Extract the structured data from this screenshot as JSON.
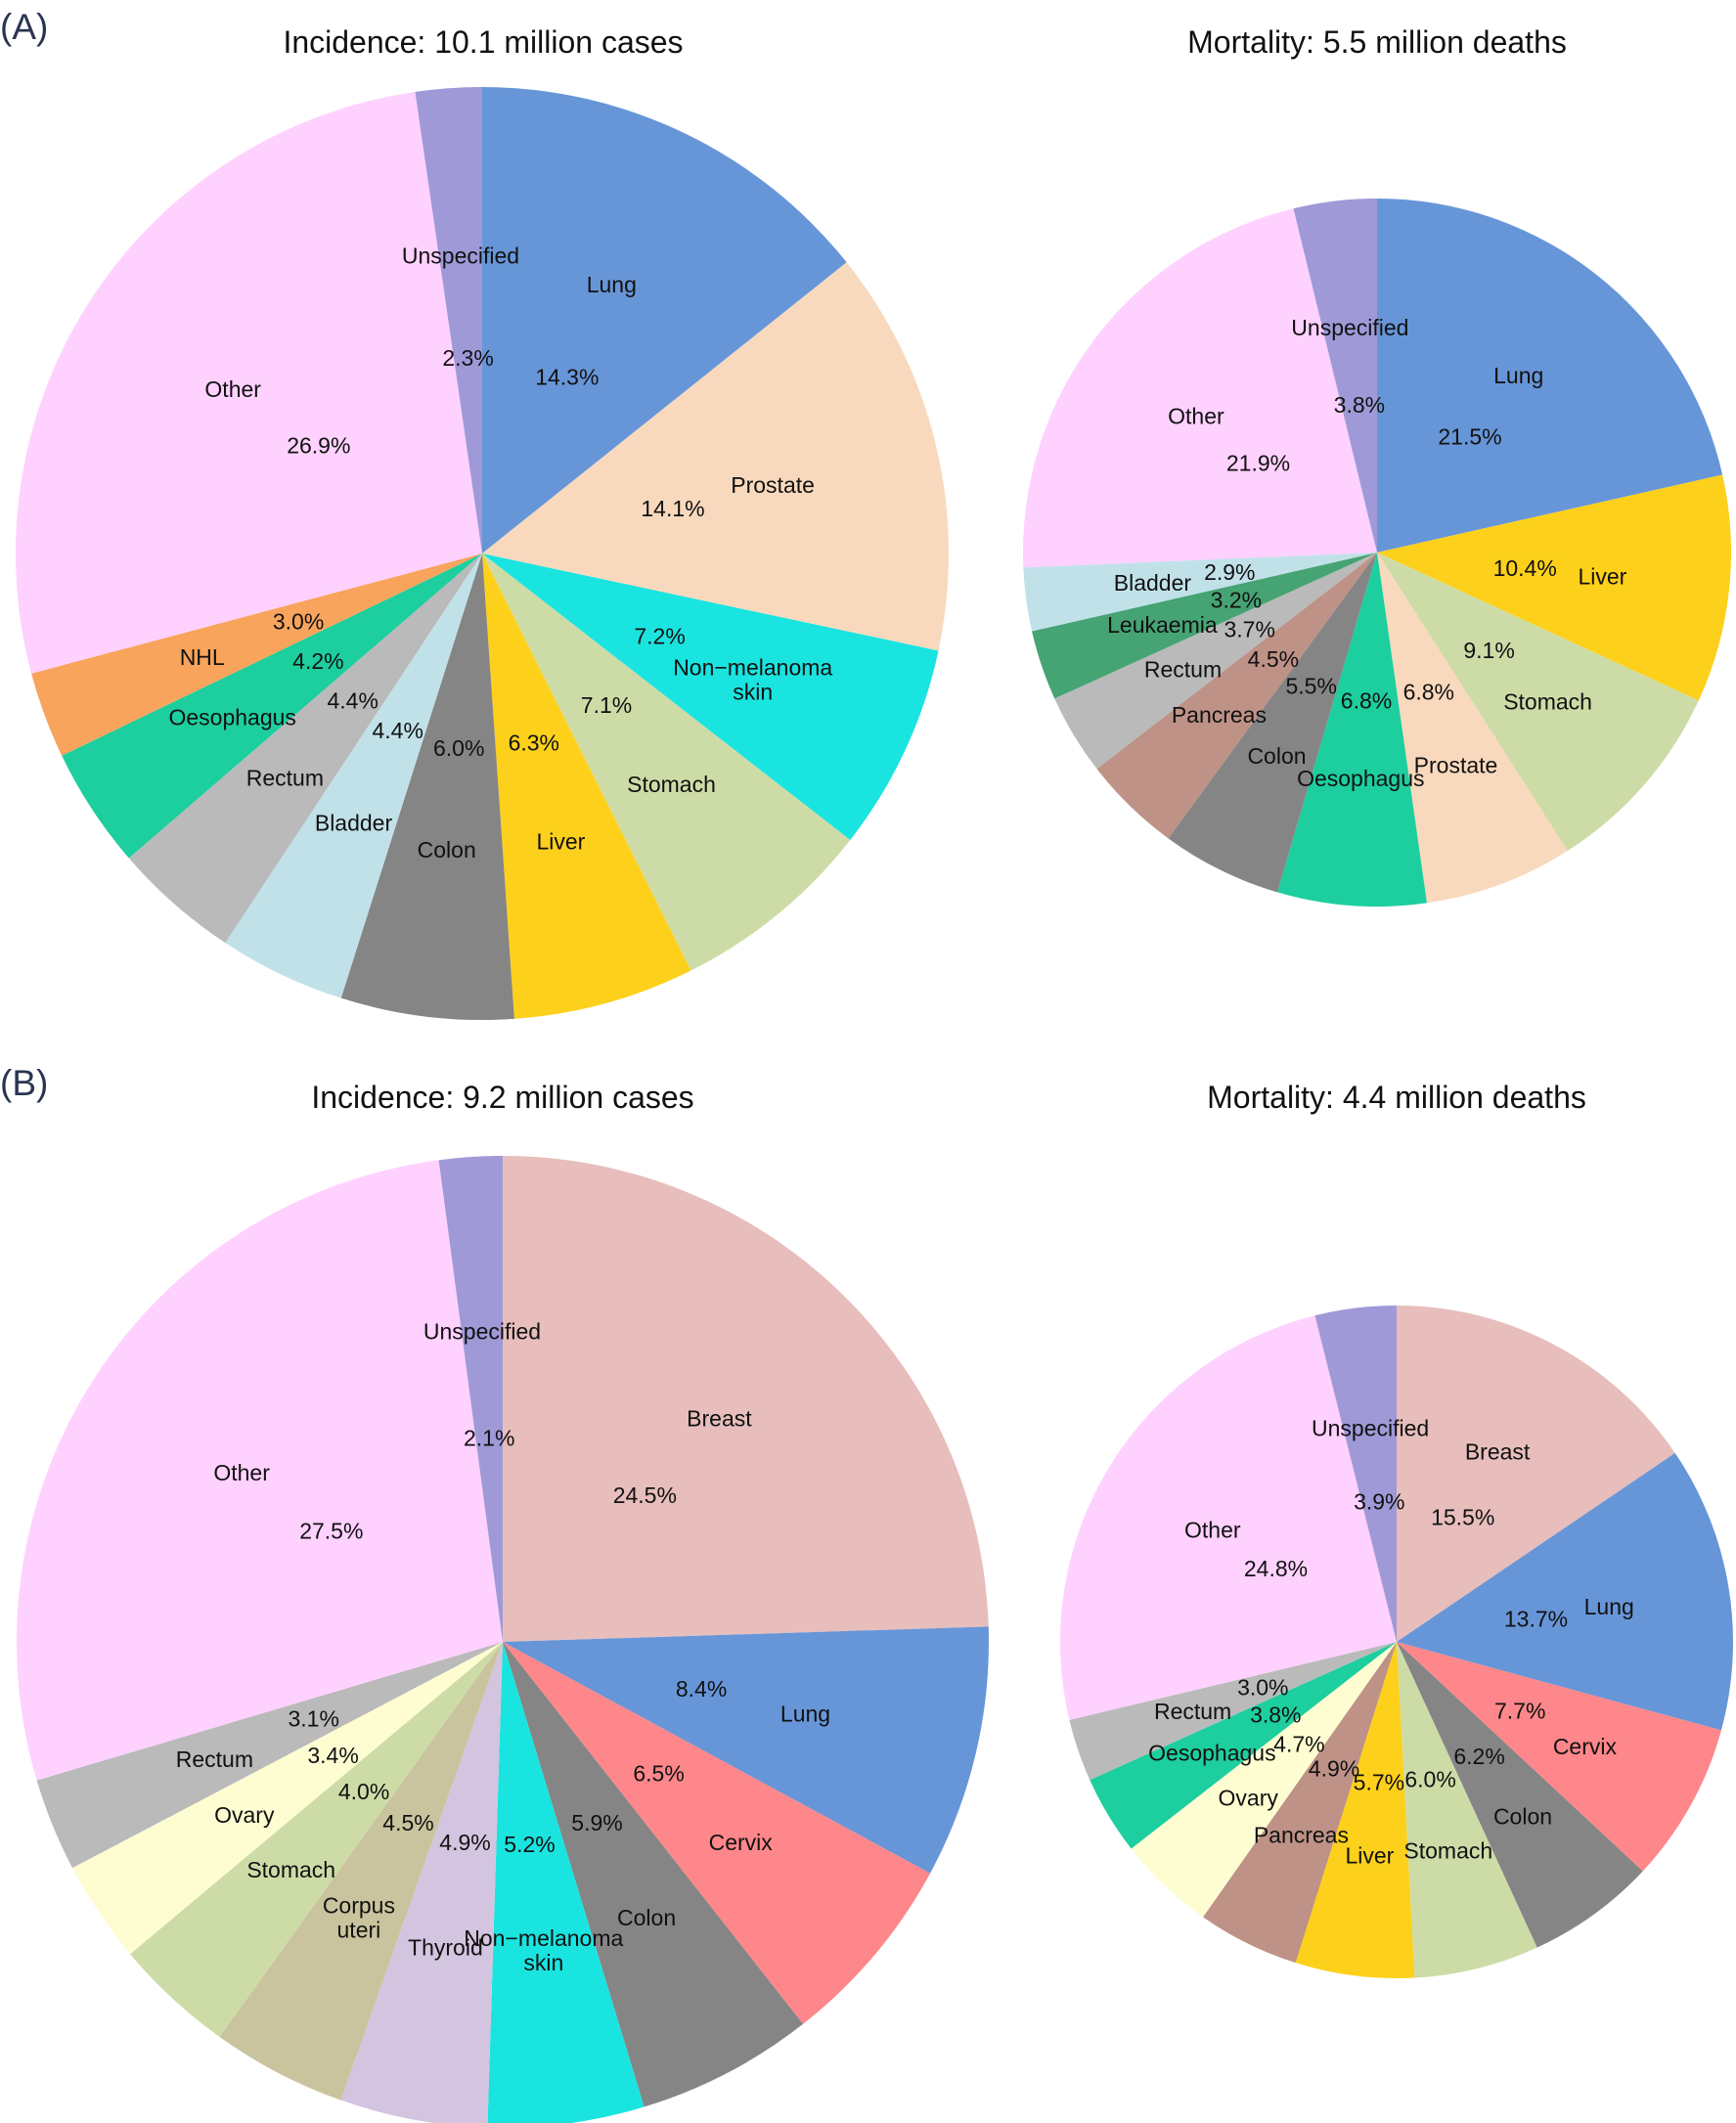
{
  "figure": {
    "panels": [
      {
        "label": "(A)"
      },
      {
        "label": "(B)"
      }
    ]
  },
  "chart_data": [
    {
      "type": "pie",
      "panel": "(A)",
      "title": "Incidence: 10.1 million cases",
      "slices": [
        {
          "label": "Lung",
          "value": 14.3,
          "pct_label": "14.3%",
          "color": "#6796D8"
        },
        {
          "label": "Prostate",
          "value": 14.1,
          "pct_label": "14.1%",
          "color": "#F9D9BD"
        },
        {
          "label": "Non−melanoma\nskin",
          "value": 7.2,
          "pct_label": "7.2%",
          "color": "#1AE4E0"
        },
        {
          "label": "Stomach",
          "value": 7.1,
          "pct_label": "7.1%",
          "color": "#CDDCA7"
        },
        {
          "label": "Liver",
          "value": 6.3,
          "pct_label": "6.3%",
          "color": "#FDD01C"
        },
        {
          "label": "Colon",
          "value": 6.0,
          "pct_label": "6.0%",
          "color": "#858585"
        },
        {
          "label": "Bladder",
          "value": 4.4,
          "pct_label": "4.4%",
          "color": "#C1E1E9"
        },
        {
          "label": "Rectum",
          "value": 4.4,
          "pct_label": "4.4%",
          "color": "#BABABA"
        },
        {
          "label": "Oesophagus",
          "value": 4.2,
          "pct_label": "4.2%",
          "color": "#1DCE9E"
        },
        {
          "label": "NHL",
          "value": 3.0,
          "pct_label": "3.0%",
          "color": "#F8A45C"
        },
        {
          "label": "Other",
          "value": 26.9,
          "pct_label": "26.9%",
          "color": "#FFD1FF"
        },
        {
          "label": "Unspecified",
          "value": 2.3,
          "pct_label": "2.3%",
          "color": "#9F99D8"
        }
      ]
    },
    {
      "type": "pie",
      "panel": "(A)",
      "title": "Mortality: 5.5 million deaths",
      "slices": [
        {
          "label": "Lung",
          "value": 21.5,
          "pct_label": "21.5%",
          "color": "#6796D8"
        },
        {
          "label": "Liver",
          "value": 10.4,
          "pct_label": "10.4%",
          "color": "#FDD01C"
        },
        {
          "label": "Stomach",
          "value": 9.1,
          "pct_label": "9.1%",
          "color": "#CDDCA7"
        },
        {
          "label": "Prostate",
          "value": 6.8,
          "pct_label": "6.8%",
          "color": "#F9D9BD"
        },
        {
          "label": "Oesophagus",
          "value": 6.8,
          "pct_label": "6.8%",
          "color": "#1DCE9E"
        },
        {
          "label": "Colon",
          "value": 5.5,
          "pct_label": "5.5%",
          "color": "#858585"
        },
        {
          "label": "Pancreas",
          "value": 4.5,
          "pct_label": "4.5%",
          "color": "#BE9286"
        },
        {
          "label": "Rectum",
          "value": 3.7,
          "pct_label": "3.7%",
          "color": "#BABABA"
        },
        {
          "label": "Leukaemia",
          "value": 3.2,
          "pct_label": "3.2%",
          "color": "#46A374"
        },
        {
          "label": "Bladder",
          "value": 2.9,
          "pct_label": "2.9%",
          "color": "#C1E1E9"
        },
        {
          "label": "Other",
          "value": 21.9,
          "pct_label": "21.9%",
          "color": "#FFD1FF"
        },
        {
          "label": "Unspecified",
          "value": 3.8,
          "pct_label": "3.8%",
          "color": "#9F99D8"
        }
      ]
    },
    {
      "type": "pie",
      "panel": "(B)",
      "title": "Incidence: 9.2 million cases",
      "slices": [
        {
          "label": "Breast",
          "value": 24.5,
          "pct_label": "24.5%",
          "color": "#E7BEBC"
        },
        {
          "label": "Lung",
          "value": 8.4,
          "pct_label": "8.4%",
          "color": "#6796D8"
        },
        {
          "label": "Cervix",
          "value": 6.5,
          "pct_label": "6.5%",
          "color": "#FD878A"
        },
        {
          "label": "Colon",
          "value": 5.9,
          "pct_label": "5.9%",
          "color": "#858585"
        },
        {
          "label": "Non−melanoma\nskin",
          "value": 5.2,
          "pct_label": "5.2%",
          "color": "#1AE4E0"
        },
        {
          "label": "Thyroid",
          "value": 4.9,
          "pct_label": "4.9%",
          "color": "#D3C4E0"
        },
        {
          "label": "Corpus\nuteri",
          "value": 4.5,
          "pct_label": "4.5%",
          "color": "#CAC49E"
        },
        {
          "label": "Stomach",
          "value": 4.0,
          "pct_label": "4.0%",
          "color": "#CDDCA7"
        },
        {
          "label": "Ovary",
          "value": 3.4,
          "pct_label": "3.4%",
          "color": "#FEFDD2"
        },
        {
          "label": "Rectum",
          "value": 3.1,
          "pct_label": "3.1%",
          "color": "#BABABA"
        },
        {
          "label": "Other",
          "value": 27.5,
          "pct_label": "27.5%",
          "color": "#FFD1FF"
        },
        {
          "label": "Unspecified",
          "value": 2.1,
          "pct_label": "2.1%",
          "color": "#9F99D8"
        }
      ]
    },
    {
      "type": "pie",
      "panel": "(B)",
      "title": "Mortality: 4.4 million deaths",
      "slices": [
        {
          "label": "Breast",
          "value": 15.5,
          "pct_label": "15.5%",
          "color": "#E7BEBC"
        },
        {
          "label": "Lung",
          "value": 13.7,
          "pct_label": "13.7%",
          "color": "#6796D8"
        },
        {
          "label": "Cervix",
          "value": 7.7,
          "pct_label": "7.7%",
          "color": "#FD878A"
        },
        {
          "label": "Colon",
          "value": 6.2,
          "pct_label": "6.2%",
          "color": "#858585"
        },
        {
          "label": "Stomach",
          "value": 6.0,
          "pct_label": "6.0%",
          "color": "#CDDCA7"
        },
        {
          "label": "Liver",
          "value": 5.7,
          "pct_label": "5.7%",
          "color": "#FDD01C"
        },
        {
          "label": "Pancreas",
          "value": 4.9,
          "pct_label": "4.9%",
          "color": "#BE9286"
        },
        {
          "label": "Ovary",
          "value": 4.7,
          "pct_label": "4.7%",
          "color": "#FEFDD2"
        },
        {
          "label": "Oesophagus",
          "value": 3.8,
          "pct_label": "3.8%",
          "color": "#1DCE9E"
        },
        {
          "label": "Rectum",
          "value": 3.0,
          "pct_label": "3.0%",
          "color": "#BABABA"
        },
        {
          "label": "Other",
          "value": 24.8,
          "pct_label": "24.8%",
          "color": "#FFD1FF"
        },
        {
          "label": "Unspecified",
          "value": 3.9,
          "pct_label": "3.9%",
          "color": "#9F99D8"
        }
      ]
    }
  ]
}
